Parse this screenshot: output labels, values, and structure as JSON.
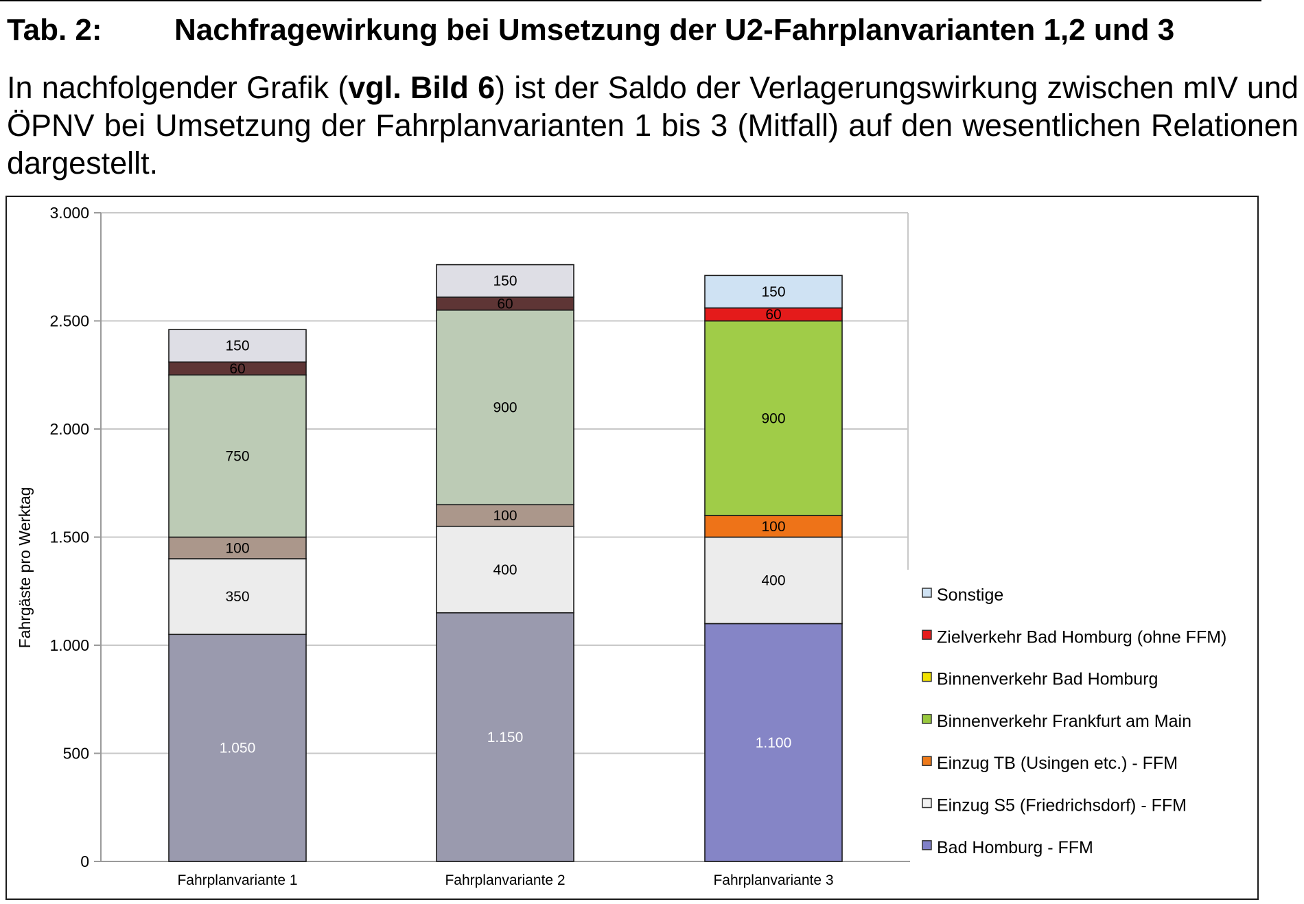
{
  "heading": {
    "number": "Tab. 2:",
    "title": "Nachfragewirkung bei Umsetzung der U2-Fahrplanvarianten 1,2 und 3"
  },
  "intro": {
    "part1": "In nachfolgender Grafik (",
    "bold": "vgl. Bild 6",
    "part2": ") ist der Saldo der Verlagerungswirkung zwischen mIV und ÖPNV bei Umsetzung der Fahrplanvarianten 1 bis 3 (Mitfall) auf den wesentlichen Relationen dargestellt."
  },
  "chart_data": {
    "type": "bar",
    "stacked": true,
    "title": "",
    "xlabel": "",
    "ylabel": "Fahrgäste pro Werktag",
    "ylim": [
      0,
      3000
    ],
    "yticks": [
      0,
      500,
      1000,
      1500,
      2000,
      2500,
      3000
    ],
    "ytick_labels": [
      "0",
      "500",
      "1.000",
      "1.500",
      "2.000",
      "2.500",
      "3.000"
    ],
    "grid": true,
    "legend_position": "right",
    "categories": [
      "Fahrplanvariante 1",
      "Fahrplanvariante 2",
      "Fahrplanvariante 3"
    ],
    "series": [
      {
        "name": "Bad Homburg - FFM",
        "values": [
          1050,
          1150,
          1100
        ],
        "value_labels": [
          "1.050",
          "1.150",
          "1.100"
        ],
        "legend_color": "#8080c8",
        "colors": [
          "#9a9aae",
          "#9a9aae",
          "#8585c6"
        ],
        "label_colors": [
          "#ffffff",
          "#ffffff",
          "#ffffff"
        ]
      },
      {
        "name": "Einzug S5 (Friedrichsdorf) - FFM",
        "values": [
          350,
          400,
          400
        ],
        "value_labels": [
          "350",
          "400",
          "400"
        ],
        "legend_color": "#f2f2f2",
        "colors": [
          "#ececec",
          "#ececec",
          "#ececec"
        ],
        "label_colors": [
          "#000000",
          "#000000",
          "#000000"
        ]
      },
      {
        "name": "Einzug TB (Usingen etc.) - FFM",
        "values": [
          100,
          100,
          100
        ],
        "value_labels": [
          "100",
          "100",
          "100"
        ],
        "legend_color": "#ee7a1a",
        "colors": [
          "#ab978b",
          "#ab978b",
          "#ee7318"
        ],
        "label_colors": [
          "#000000",
          "#000000",
          "#000000"
        ]
      },
      {
        "name": "Binnenverkehr Frankfurt am Main",
        "values": [
          750,
          900,
          900
        ],
        "value_labels": [
          "750",
          "900",
          "900"
        ],
        "legend_color": "#99c93e",
        "colors": [
          "#bccbb5",
          "#bccbb5",
          "#a0cc48"
        ],
        "label_colors": [
          "#000000",
          "#000000",
          "#000000"
        ]
      },
      {
        "name": "Binnenverkehr Bad Homburg",
        "values": [
          0,
          0,
          0
        ],
        "value_labels": [
          "",
          "",
          ""
        ],
        "legend_color": "#f2e200",
        "colors": [
          "#f2e200",
          "#f2e200",
          "#f2e200"
        ],
        "label_colors": [
          "#000000",
          "#000000",
          "#000000"
        ]
      },
      {
        "name": "Zielverkehr Bad Homburg (ohne FFM)",
        "values": [
          60,
          60,
          60
        ],
        "value_labels": [
          "60",
          "60",
          "60"
        ],
        "legend_color": "#e41b1b",
        "colors": [
          "#5e3535",
          "#5e3535",
          "#e41b1b"
        ],
        "label_colors": [
          "#000000",
          "#000000",
          "#000000"
        ]
      },
      {
        "name": "Sonstige",
        "values": [
          150,
          150,
          150
        ],
        "value_labels": [
          "150",
          "150",
          "150"
        ],
        "legend_color": "#cfe2f3",
        "colors": [
          "#dedee5",
          "#dedee5",
          "#cfe2f3"
        ],
        "label_colors": [
          "#000000",
          "#000000",
          "#000000"
        ]
      }
    ],
    "legend_order": [
      "Sonstige",
      "Zielverkehr Bad Homburg (ohne FFM)",
      "Binnenverkehr Bad Homburg",
      "Binnenverkehr Frankfurt am Main",
      "Einzug TB (Usingen etc.) - FFM",
      "Einzug S5 (Friedrichsdorf) - FFM",
      "Bad Homburg - FFM"
    ]
  }
}
